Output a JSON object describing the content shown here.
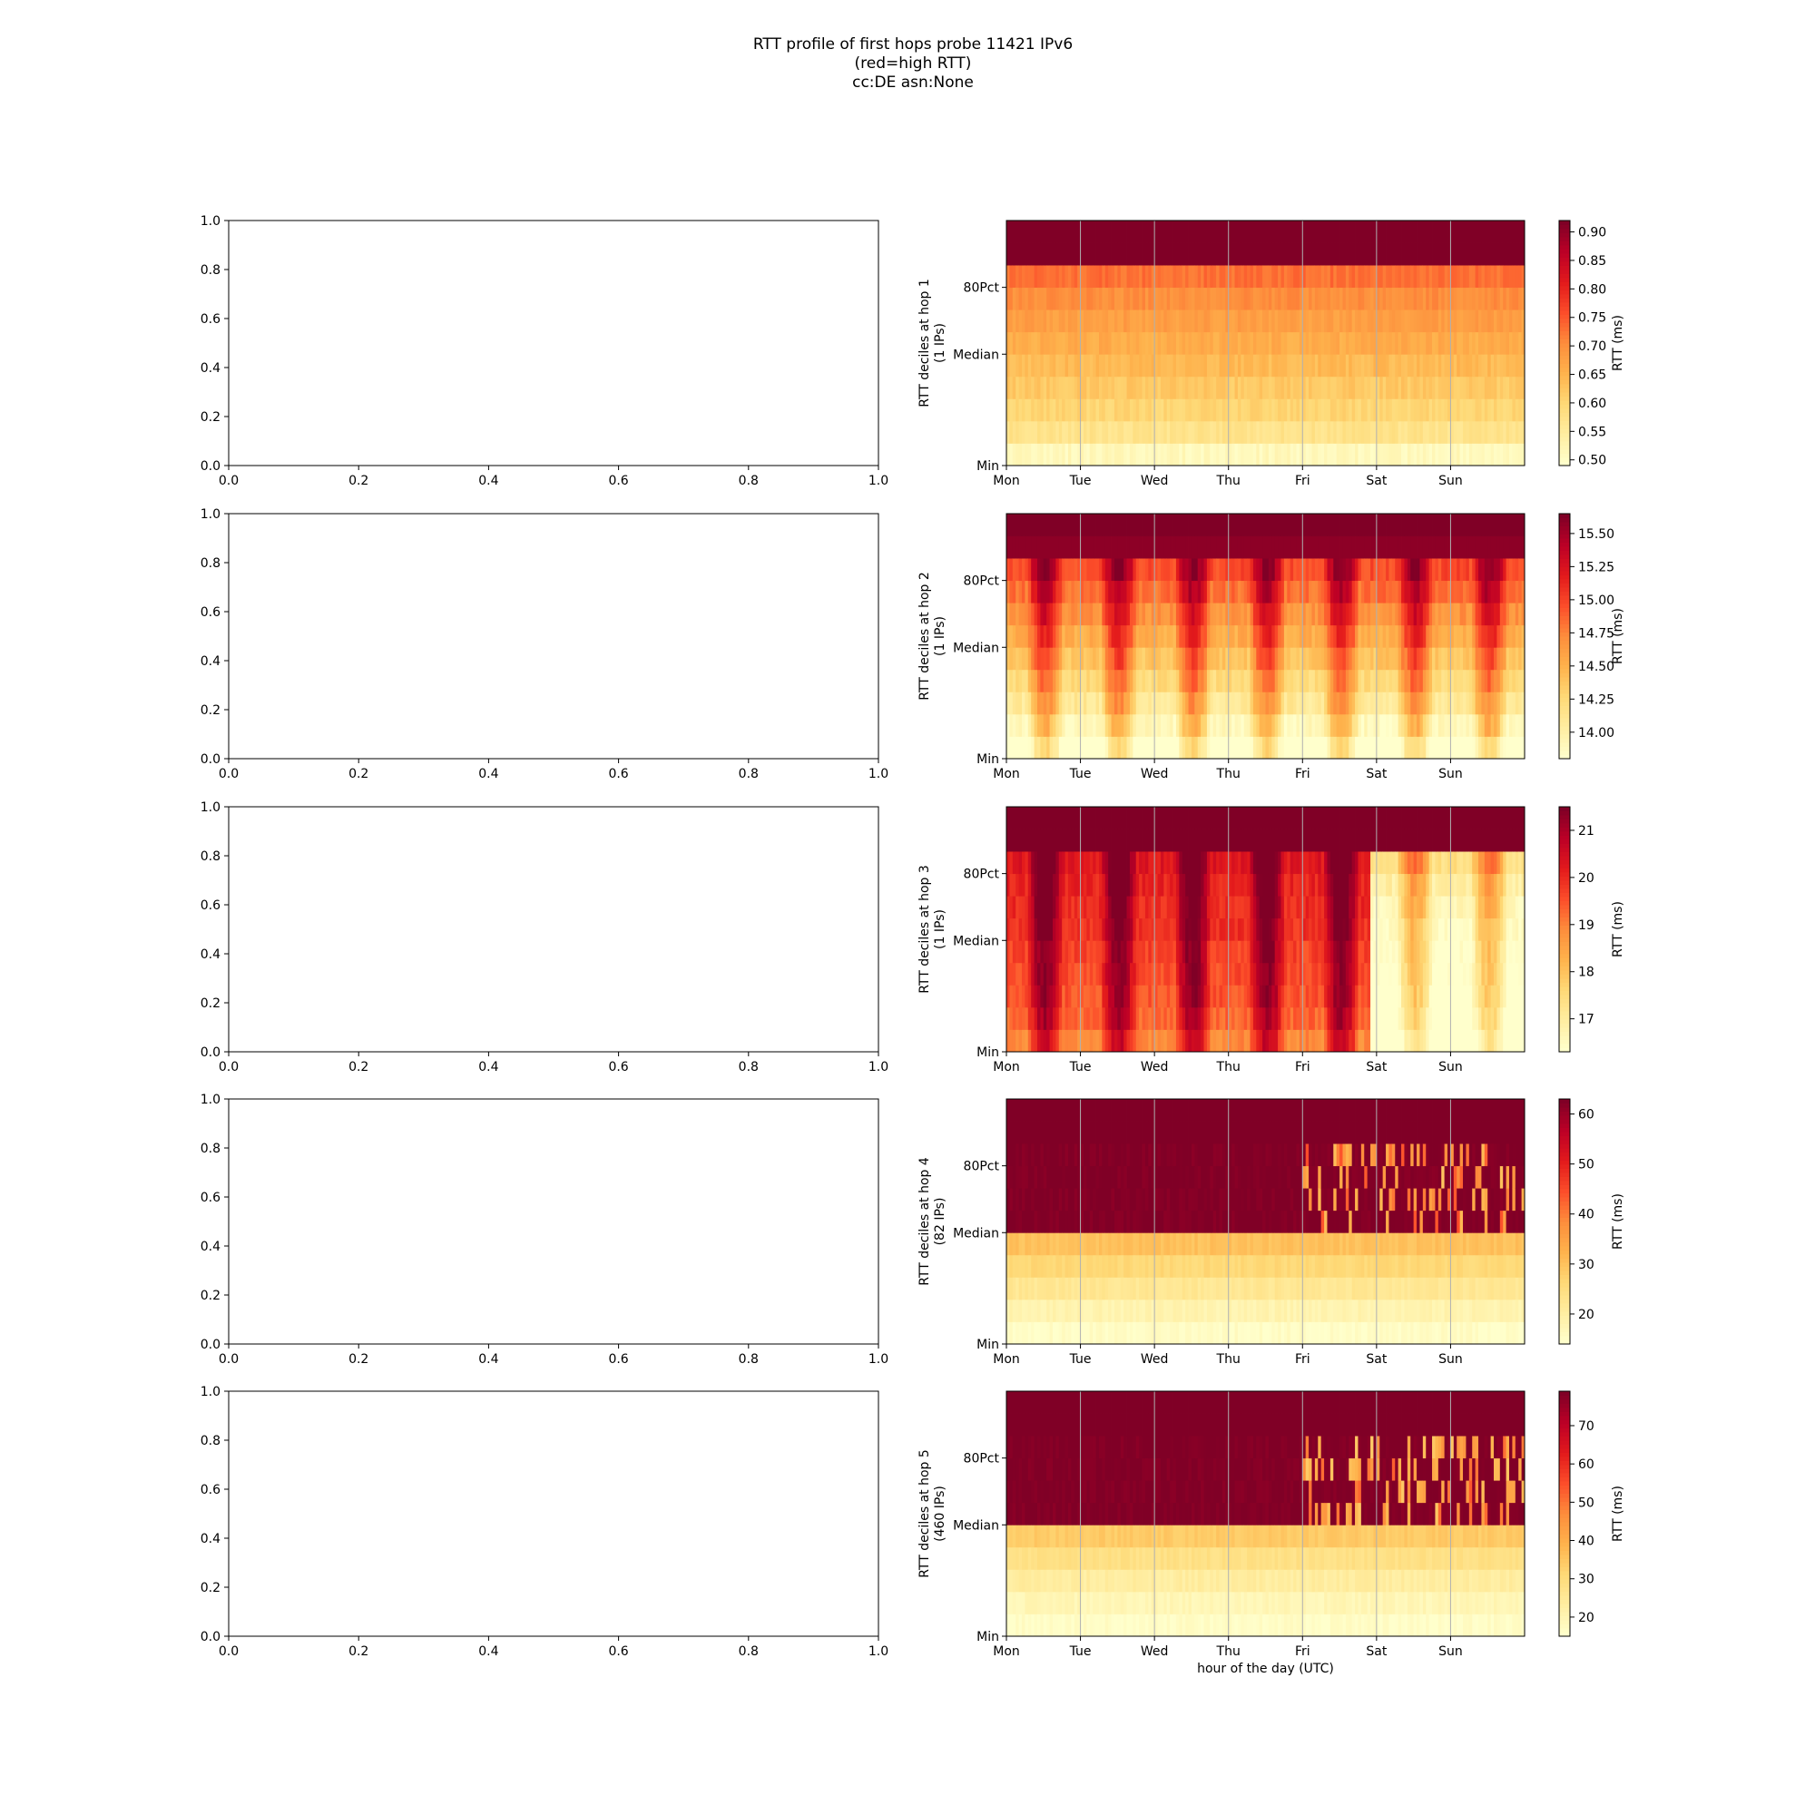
{
  "figure": {
    "title_lines": [
      "RTT profile of first hops probe 11421 IPv6",
      "(red=high RTT)",
      "cc:DE asn:None"
    ],
    "background": "#ffffff"
  },
  "empty_axes": {
    "x_ticks": [
      "0.0",
      "0.2",
      "0.4",
      "0.6",
      "0.8",
      "1.0"
    ],
    "y_ticks": [
      "0.0",
      "0.2",
      "0.4",
      "0.6",
      "0.8",
      "1.0"
    ]
  },
  "chart_data": {
    "type": "heatmap",
    "colormap": "YlOrRd",
    "colormap_stops": [
      "#ffffcc",
      "#ffeda0",
      "#fed976",
      "#feb24c",
      "#fd8d3c",
      "#fc4e2a",
      "#e31a1c",
      "#bd0026",
      "#800026"
    ],
    "x_tick_labels": [
      "Mon",
      "Tue",
      "Wed",
      "Thu",
      "Fri",
      "Sat",
      "Sun"
    ],
    "y_tick_labels": [
      "Min",
      "Median",
      "80Pct"
    ],
    "xlabel": "hour of the day (UTC)",
    "grid": "vertical lines at day boundaries",
    "colorbar_label": "RTT (ms)",
    "panels": [
      {
        "ylabel": "RTT deciles at hop 1",
        "ylabel2": "(1 IPs)",
        "colorbar_ticks": [
          "0.50",
          "0.55",
          "0.60",
          "0.65",
          "0.70",
          "0.75",
          "0.80",
          "0.85",
          "0.90"
        ],
        "colorbar_values": [
          0.5,
          0.55,
          0.6,
          0.65,
          0.7,
          0.75,
          0.8,
          0.85,
          0.9
        ],
        "vmin": 0.49,
        "vmax": 0.92,
        "deciles_rtt": [
          0.51,
          0.57,
          0.6,
          0.62,
          0.64,
          0.66,
          0.68,
          0.7,
          0.73,
          0.92,
          0.92
        ],
        "pattern": "stable"
      },
      {
        "ylabel": "RTT deciles at hop 2",
        "ylabel2": "(1 IPs)",
        "colorbar_ticks": [
          "14.00",
          "14.25",
          "14.50",
          "14.75",
          "15.00",
          "15.25",
          "15.50"
        ],
        "colorbar_values": [
          14.0,
          14.25,
          14.5,
          14.75,
          15.0,
          15.25,
          15.5
        ],
        "vmin": 13.8,
        "vmax": 15.65,
        "deciles_rtt": [
          13.95,
          14.2,
          14.4,
          14.55,
          14.7,
          14.85,
          15.0,
          15.15,
          15.3,
          15.6,
          15.65
        ],
        "pattern": "diurnal"
      },
      {
        "ylabel": "RTT deciles at hop 3",
        "ylabel2": "(1 IPs)",
        "colorbar_ticks": [
          "17",
          "18",
          "19",
          "20",
          "21"
        ],
        "colorbar_values": [
          17,
          18,
          19,
          20,
          21
        ],
        "vmin": 16.3,
        "vmax": 21.5,
        "deciles_rtt": [
          19.8,
          20.2,
          20.4,
          20.5,
          20.6,
          20.8,
          20.9,
          21.0,
          21.2,
          21.5,
          21.5
        ],
        "deciles_rtt_after_sat": [
          16.4,
          16.8,
          17.0,
          17.1,
          17.2,
          17.3,
          17.5,
          17.8,
          18.3,
          20.0,
          21.5
        ],
        "pattern": "diurnal-with-drop-before-sat"
      },
      {
        "ylabel": "RTT deciles at hop 4",
        "ylabel2": "(82 IPs)",
        "colorbar_ticks": [
          "20",
          "30",
          "40",
          "50",
          "60"
        ],
        "colorbar_values": [
          20,
          30,
          40,
          50,
          60
        ],
        "vmin": 14,
        "vmax": 63,
        "deciles_rtt": [
          15,
          18,
          22,
          26,
          30,
          63,
          63,
          63,
          63,
          63,
          63
        ],
        "pattern": "step-at-median"
      },
      {
        "ylabel": "RTT deciles at hop 5",
        "ylabel2": "(460 IPs)",
        "colorbar_ticks": [
          "20",
          "30",
          "40",
          "50",
          "60",
          "70"
        ],
        "colorbar_values": [
          20,
          30,
          40,
          50,
          60,
          70
        ],
        "vmin": 15,
        "vmax": 79,
        "deciles_rtt": [
          16,
          19,
          23,
          28,
          34,
          79,
          79,
          79,
          79,
          79,
          79
        ],
        "pattern": "step-at-median"
      }
    ]
  }
}
